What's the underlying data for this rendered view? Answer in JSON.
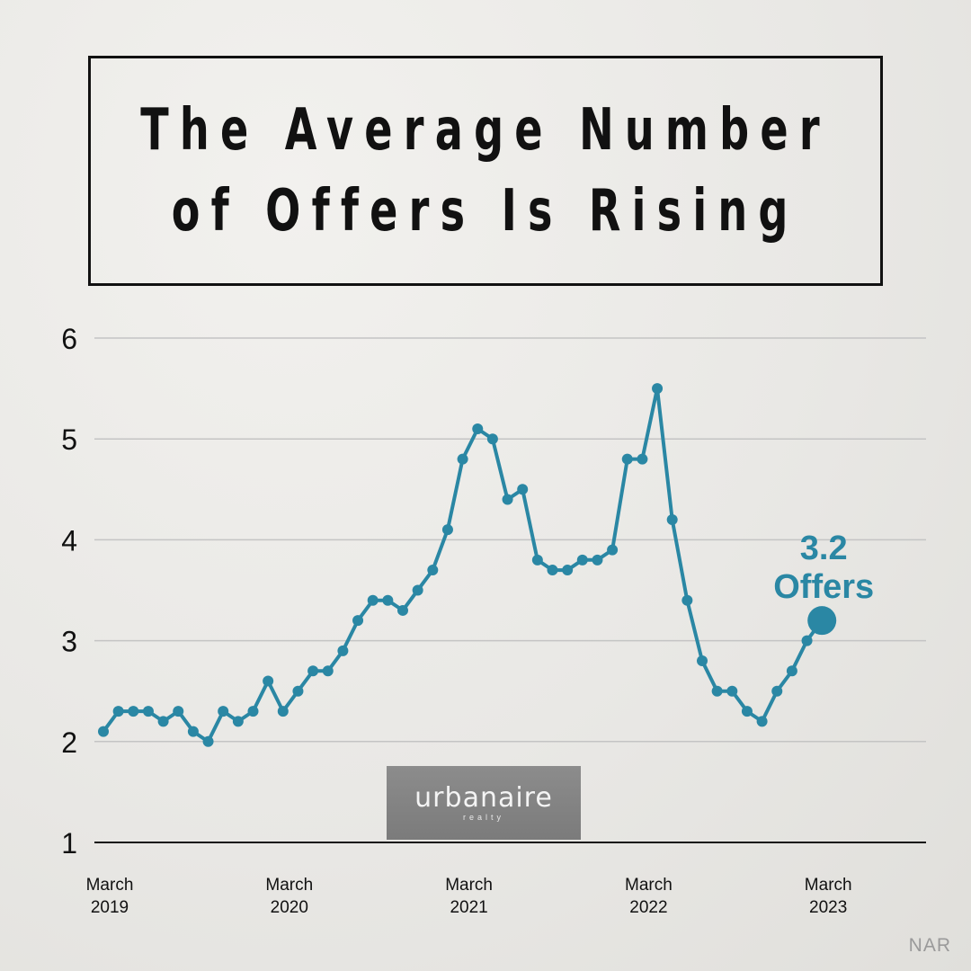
{
  "title_lines": [
    "The Average Number",
    "of Offers Is Rising"
  ],
  "source": "NAR",
  "logo": {
    "name": "urbanaire",
    "sub": "realty"
  },
  "colors": {
    "line": "#2a87a4",
    "text": "#111111",
    "grid": "#c4c4c4"
  },
  "chart_data": {
    "type": "line",
    "title": "The Average Number of Offers Is Rising",
    "xlabel": "",
    "ylabel": "",
    "ylim": [
      1,
      6
    ],
    "yticks": [
      1,
      2,
      3,
      4,
      5,
      6
    ],
    "grid": true,
    "x_tick_labels": [
      {
        "index": 0,
        "line1": "March",
        "line2": "2019"
      },
      {
        "index": 12,
        "line1": "March",
        "line2": "2020"
      },
      {
        "index": 24,
        "line1": "March",
        "line2": "2021"
      },
      {
        "index": 36,
        "line1": "March",
        "line2": "2022"
      },
      {
        "index": 48,
        "line1": "March",
        "line2": "2023"
      }
    ],
    "series": [
      {
        "values": [
          2.1,
          2.3,
          2.3,
          2.3,
          2.2,
          2.3,
          2.1,
          2.0,
          2.3,
          2.2,
          2.3,
          2.6,
          2.3,
          2.5,
          2.7,
          2.7,
          2.9,
          3.2,
          3.4,
          3.4,
          3.3,
          3.5,
          3.7,
          4.1,
          4.8,
          5.1,
          5.0,
          4.4,
          4.5,
          3.8,
          3.7,
          3.7,
          3.8,
          3.8,
          3.9,
          4.8,
          4.8,
          5.5,
          4.2,
          3.4,
          2.8,
          2.5,
          2.5,
          2.3,
          2.2,
          2.5,
          2.7,
          3.0,
          3.2
        ]
      }
    ],
    "annotation": {
      "index": 48,
      "value": 3.2,
      "line1": "3.2",
      "line2": "Offers"
    }
  }
}
